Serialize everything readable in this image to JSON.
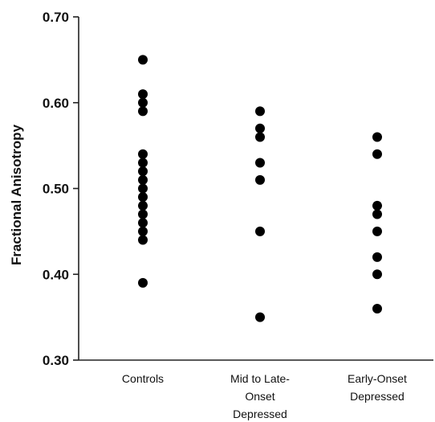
{
  "chart_data": {
    "type": "scatter",
    "title": "",
    "xlabel": "",
    "ylabel": "Fractional Anisotropy",
    "ylim": [
      0.3,
      0.7
    ],
    "yticks": [
      "0.30",
      "0.40",
      "0.50",
      "0.60",
      "0.70"
    ],
    "grid": false,
    "legend": "none",
    "categories": [
      [
        "Controls"
      ],
      [
        "Mid to Late-",
        "Onset",
        "Depressed"
      ],
      [
        "Early-Onset",
        "Depressed"
      ]
    ],
    "series": [
      {
        "values": [
          0.65,
          0.61,
          0.6,
          0.59,
          0.54,
          0.53,
          0.52,
          0.51,
          0.5,
          0.49,
          0.48,
          0.47,
          0.46,
          0.45,
          0.44,
          0.39
        ]
      },
      {
        "values": [
          0.59,
          0.57,
          0.56,
          0.53,
          0.51,
          0.45,
          0.35
        ]
      },
      {
        "values": [
          0.56,
          0.54,
          0.48,
          0.47,
          0.45,
          0.42,
          0.4,
          0.36
        ]
      }
    ],
    "colors": {
      "point": "#000000",
      "axis": "#222222",
      "text": "#111111"
    }
  }
}
